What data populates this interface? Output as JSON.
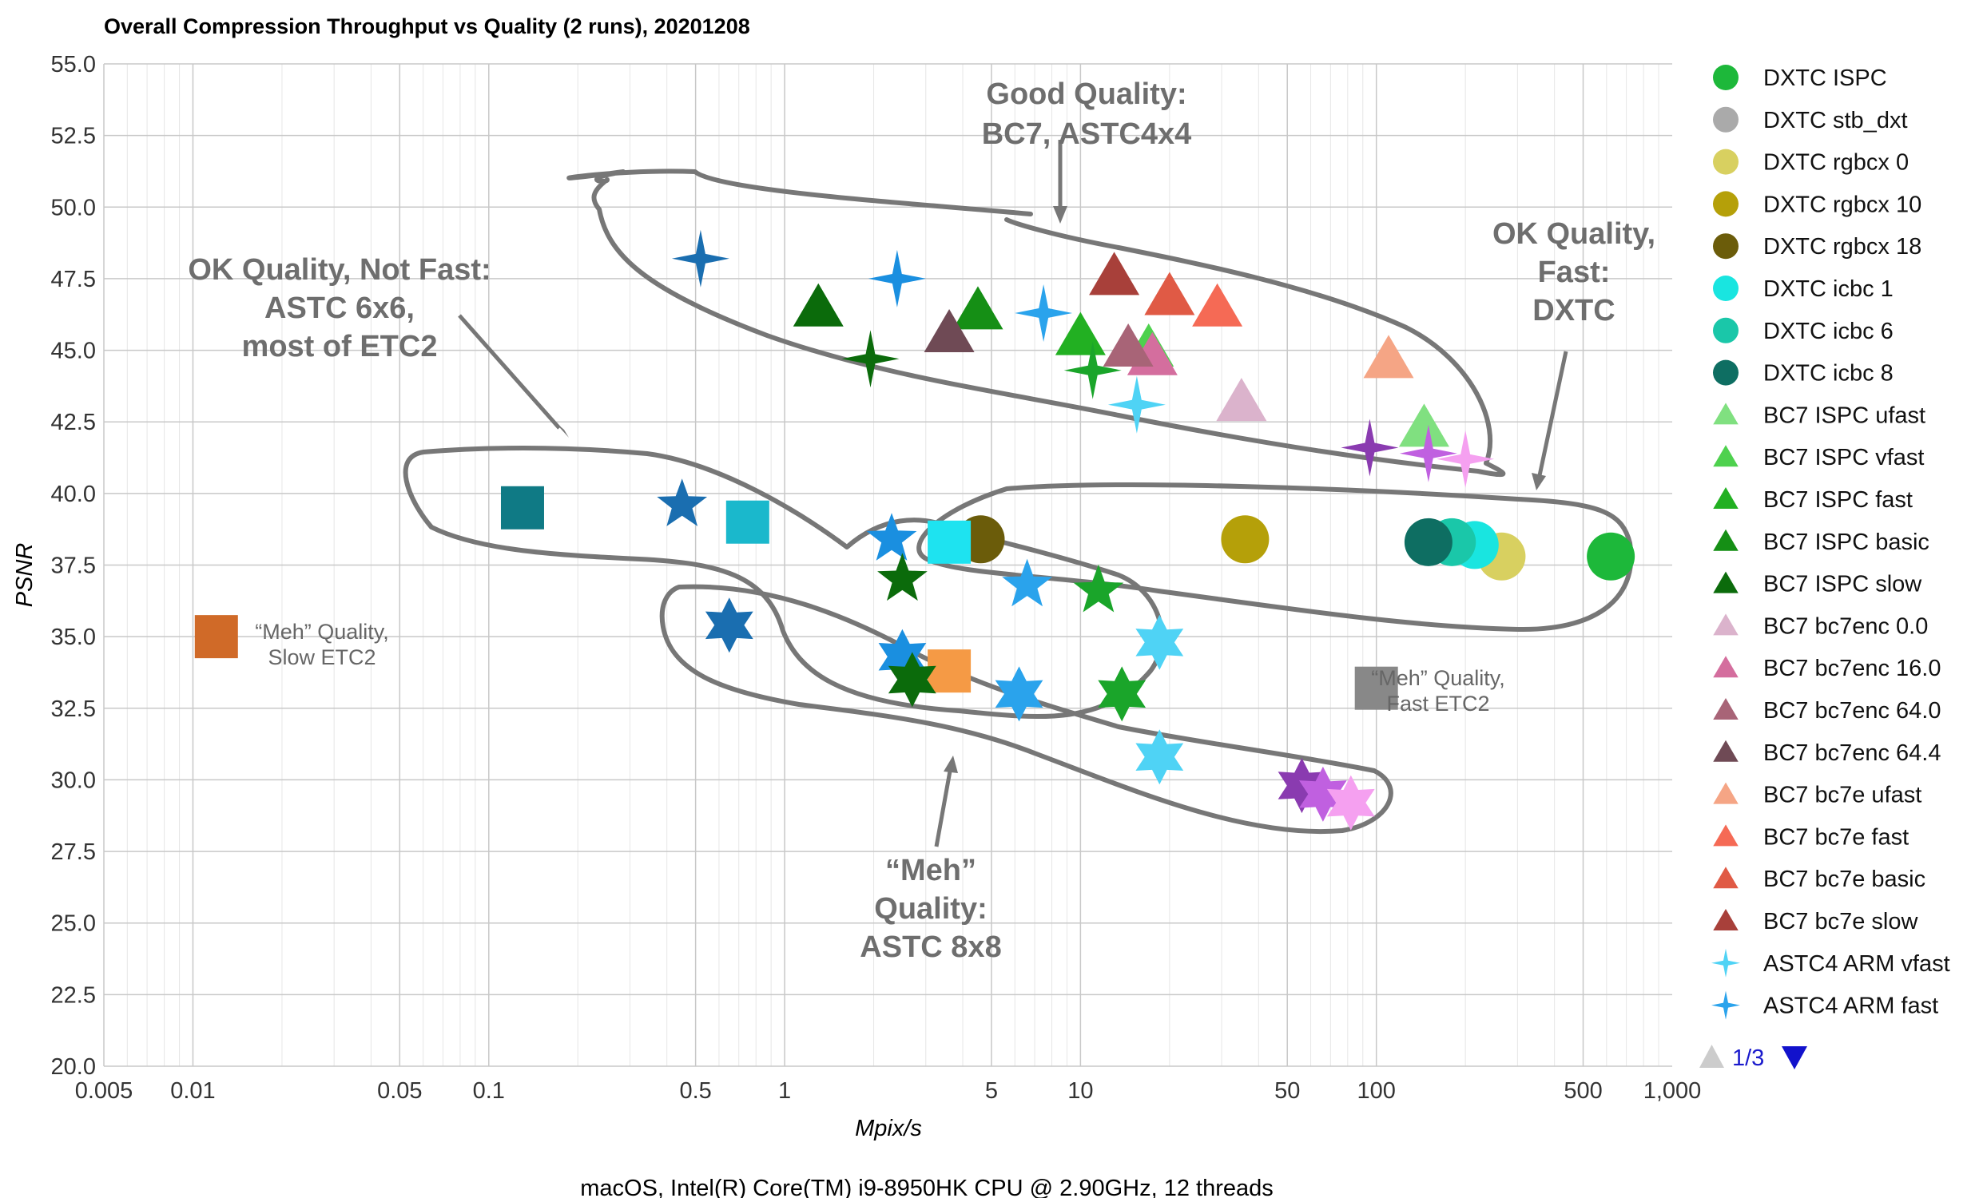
{
  "chart_data": {
    "type": "scatter",
    "title": "Overall Compression Throughput vs Quality (2 runs), 20201208",
    "xlabel": "Mpix/s",
    "ylabel": "PSNR",
    "footer": "macOS, Intel(R) Core(TM) i9-8950HK CPU @ 2.90GHz, 12 threads",
    "x_scale": "log",
    "xlim": [
      0.005,
      1000
    ],
    "ylim": [
      20,
      55
    ],
    "x_ticks": [
      0.005,
      0.01,
      0.05,
      0.1,
      0.5,
      1,
      5,
      10,
      50,
      100,
      500,
      1000
    ],
    "x_tick_labels": [
      "0.005",
      "0.01",
      "0.05",
      "0.1",
      "0.5",
      "1",
      "5",
      "10",
      "50",
      "100",
      "500",
      "1,000"
    ],
    "y_ticks": [
      20,
      22.5,
      25,
      27.5,
      30,
      32.5,
      35,
      37.5,
      40,
      42.5,
      45,
      47.5,
      50,
      52.5,
      55
    ],
    "y_tick_labels": [
      "20.0",
      "22.5",
      "25.0",
      "27.5",
      "30.0",
      "32.5",
      "35.0",
      "37.5",
      "40.0",
      "42.5",
      "45.0",
      "47.5",
      "50.0",
      "52.5",
      "55.0"
    ],
    "grid": true,
    "legend_position": "right",
    "series": [
      {
        "name": "DXTC ISPC",
        "color": "#1db83a",
        "marker": "circle",
        "points": [
          [
            620,
            37.8
          ]
        ]
      },
      {
        "name": "DXTC stb_dxt",
        "color": "#aaaaaa",
        "marker": "circle",
        "points": []
      },
      {
        "name": "DXTC rgbcx 0",
        "color": "#d8d060",
        "marker": "circle",
        "points": [
          [
            265,
            37.8
          ]
        ]
      },
      {
        "name": "DXTC rgbcx 10",
        "color": "#b5a009",
        "marker": "circle",
        "points": [
          [
            36,
            38.4
          ]
        ]
      },
      {
        "name": "DXTC rgbcx 18",
        "color": "#6b5c0a",
        "marker": "circle",
        "points": [
          [
            4.6,
            38.4
          ]
        ]
      },
      {
        "name": "DXTC icbc 1",
        "color": "#19e5e0",
        "marker": "circle",
        "points": [
          [
            215,
            38.2
          ]
        ]
      },
      {
        "name": "DXTC icbc 6",
        "color": "#1ac7a9",
        "marker": "circle",
        "points": [
          [
            180,
            38.3
          ]
        ]
      },
      {
        "name": "DXTC icbc 8",
        "color": "#0e6e62",
        "marker": "circle",
        "points": [
          [
            150,
            38.3
          ]
        ]
      },
      {
        "name": "BC7 ISPC ufast",
        "color": "#80e080",
        "marker": "triangle",
        "points": [
          [
            145,
            42.3
          ]
        ]
      },
      {
        "name": "BC7 ISPC vfast",
        "color": "#4ed14e",
        "marker": "triangle",
        "points": [
          [
            17,
            45.1
          ]
        ]
      },
      {
        "name": "BC7 ISPC fast",
        "color": "#22b022",
        "marker": "triangle",
        "points": [
          [
            10,
            45.5
          ]
        ]
      },
      {
        "name": "BC7 ISPC basic",
        "color": "#158f15",
        "marker": "triangle",
        "points": [
          [
            4.5,
            46.4
          ]
        ]
      },
      {
        "name": "BC7 ISPC slow",
        "color": "#0b6b0b",
        "marker": "triangle",
        "points": [
          [
            1.3,
            46.5
          ]
        ]
      },
      {
        "name": "BC7 bc7enc 0.0",
        "color": "#dbb3cc",
        "marker": "triangle",
        "points": [
          [
            35,
            43.2
          ]
        ]
      },
      {
        "name": "BC7 bc7enc 16.0",
        "color": "#d46e9e",
        "marker": "triangle",
        "points": [
          [
            17.5,
            44.8
          ]
        ]
      },
      {
        "name": "BC7 bc7enc 64.0",
        "color": "#a86477",
        "marker": "triangle",
        "points": [
          [
            14.5,
            45.1
          ]
        ]
      },
      {
        "name": "BC7 bc7enc 64.4",
        "color": "#6f4a55",
        "marker": "triangle",
        "points": [
          [
            3.6,
            45.6
          ]
        ]
      },
      {
        "name": "BC7 bc7e ufast",
        "color": "#f5a585",
        "marker": "triangle",
        "points": [
          [
            110,
            44.7
          ]
        ]
      },
      {
        "name": "BC7 bc7e fast",
        "color": "#f56a55",
        "marker": "triangle",
        "points": [
          [
            29,
            46.5
          ]
        ]
      },
      {
        "name": "BC7 bc7e basic",
        "color": "#e05a45",
        "marker": "triangle",
        "points": [
          [
            20,
            46.9
          ]
        ]
      },
      {
        "name": "BC7 bc7e slow",
        "color": "#a8403a",
        "marker": "triangle",
        "points": [
          [
            13,
            47.6
          ]
        ]
      },
      {
        "name": "ASTC4 ARM vfast",
        "color": "#4fd3f5",
        "marker": "star4",
        "points": [
          [
            15.5,
            43.1
          ]
        ]
      },
      {
        "name": "ASTC4 ARM fast",
        "color": "#2aa3ec",
        "marker": "star4",
        "points": [
          [
            7.5,
            46.3
          ]
        ]
      }
    ],
    "other_points": [
      {
        "color": "#1a8fe0",
        "marker": "star4",
        "x": 2.4,
        "y": 47.5
      },
      {
        "color": "#1a6eb0",
        "marker": "star4",
        "x": 0.52,
        "y": 48.2
      },
      {
        "color": "#1aa52a",
        "marker": "star4",
        "x": 11,
        "y": 44.3
      },
      {
        "color": "#0b6b0b",
        "marker": "star4",
        "x": 1.95,
        "y": 44.7
      },
      {
        "color": "#8a3bb0",
        "marker": "star4",
        "x": 95,
        "y": 41.6
      },
      {
        "color": "#c060e0",
        "marker": "star4",
        "x": 150,
        "y": 41.4
      },
      {
        "color": "#f5a0f0",
        "marker": "star4",
        "x": 200,
        "y": 41.2
      },
      {
        "color": "#0f7a85",
        "marker": "square",
        "x": 0.13,
        "y": 39.5
      },
      {
        "color": "#1ab8cc",
        "marker": "square",
        "x": 0.75,
        "y": 39.0
      },
      {
        "color": "#1ee3f0",
        "marker": "square",
        "x": 3.6,
        "y": 38.3
      },
      {
        "color": "#f59a45",
        "marker": "square",
        "x": 3.6,
        "y": 33.8
      },
      {
        "color": "#d06a28",
        "marker": "square",
        "x": 0.012,
        "y": 35.0
      },
      {
        "color": "#888888",
        "marker": "square",
        "x": 100,
        "y": 33.2
      },
      {
        "color": "#1a6eb0",
        "marker": "star5",
        "x": 0.45,
        "y": 39.6
      },
      {
        "color": "#1a8fe0",
        "marker": "star5",
        "x": 2.3,
        "y": 38.4
      },
      {
        "color": "#0b6b0b",
        "marker": "star5",
        "x": 2.5,
        "y": 37.0
      },
      {
        "color": "#2aa3ec",
        "marker": "star5",
        "x": 6.6,
        "y": 36.8
      },
      {
        "color": "#1aa52a",
        "marker": "star5",
        "x": 11.5,
        "y": 36.6
      },
      {
        "color": "#4fd3f5",
        "marker": "star6",
        "x": 18.5,
        "y": 34.8
      },
      {
        "color": "#1a6eb0",
        "marker": "star6",
        "x": 0.65,
        "y": 35.4
      },
      {
        "color": "#1a8fe0",
        "marker": "star6",
        "x": 2.5,
        "y": 34.3
      },
      {
        "color": "#0b6b0b",
        "marker": "star6",
        "x": 2.7,
        "y": 33.5
      },
      {
        "color": "#2aa3ec",
        "marker": "star6",
        "x": 6.2,
        "y": 33.0
      },
      {
        "color": "#1aa52a",
        "marker": "star6",
        "x": 13.8,
        "y": 33.0
      },
      {
        "color": "#4fd3f5",
        "marker": "star6",
        "x": 18.5,
        "y": 30.8
      },
      {
        "color": "#8a3bb0",
        "marker": "star6",
        "x": 56,
        "y": 29.8
      },
      {
        "color": "#c060e0",
        "marker": "star6",
        "x": 66,
        "y": 29.5
      },
      {
        "color": "#f5a0f0",
        "marker": "star6",
        "x": 82,
        "y": 29.2
      }
    ]
  },
  "annotations": {
    "good_quality": [
      "Good Quality:",
      "BC7, ASTC4x4"
    ],
    "ok_not_fast": [
      "OK Quality, Not Fast:",
      "ASTC 6x6,",
      "most of ETC2"
    ],
    "ok_fast": [
      "OK Quality,",
      "Fast:",
      "DXTC"
    ],
    "meh_astc": [
      "“Meh”",
      "Quality:",
      "ASTC 8x8"
    ],
    "meh_slow_etc2": [
      "“Meh” Quality,",
      "Slow ETC2"
    ],
    "meh_fast_etc2": [
      "“Meh” Quality,",
      "Fast ETC2"
    ]
  },
  "legend": {
    "pager": "1/3",
    "prev_icon": "triangle-up-icon",
    "next_icon": "triangle-down-icon"
  }
}
